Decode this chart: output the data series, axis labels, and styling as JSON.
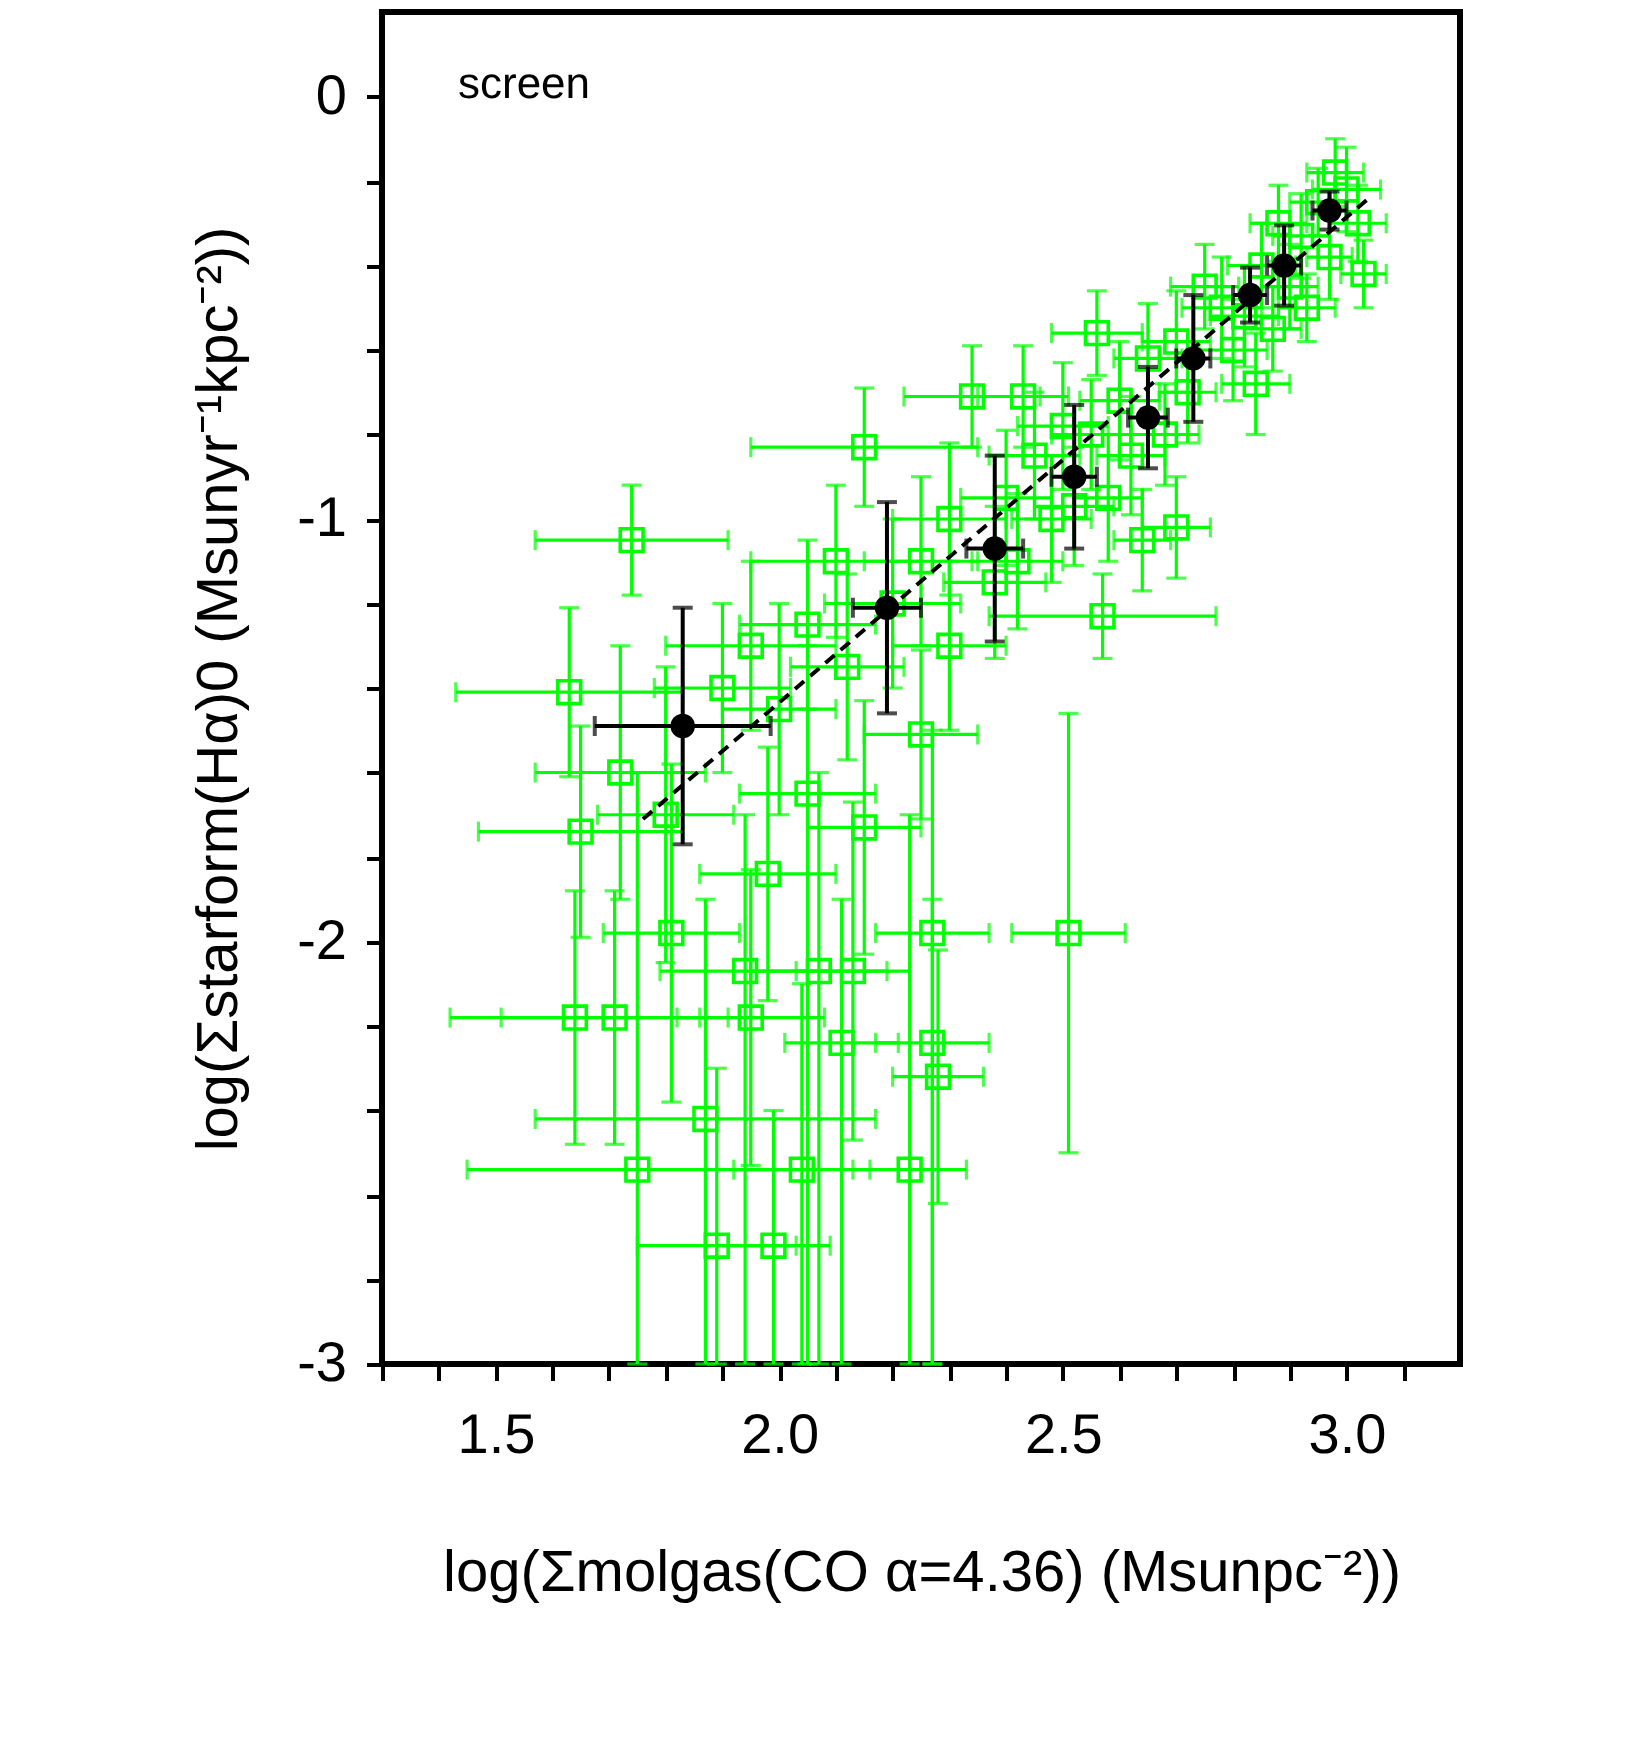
{
  "chart_data": {
    "type": "scatter",
    "xlabel": "log(Σmolgas(CO  α=4.36)  (Msunpc⁻²))",
    "ylabel": "log(Σstarform(Hα)0  (Msunyr⁻¹kpc⁻²))",
    "annotations": [
      "screen"
    ],
    "xlim": [
      1.3,
      3.2
    ],
    "ylim": [
      -3,
      0.2
    ],
    "xticks": [
      {
        "value": 1.3,
        "label": null
      },
      {
        "value": 1.4,
        "label": null
      },
      1.5,
      {
        "value": 1.6,
        "label": null
      },
      {
        "value": 1.7,
        "label": null
      },
      {
        "value": 1.8,
        "label": null
      },
      {
        "value": 1.9,
        "label": null
      },
      {
        "value": 2,
        "label": "2.0"
      },
      {
        "value": 2.1,
        "label": null
      },
      {
        "value": 2.2,
        "label": null
      },
      {
        "value": 2.3,
        "label": null
      },
      {
        "value": 2.4,
        "label": null
      },
      2.5,
      {
        "value": 2.6,
        "label": null
      },
      {
        "value": 2.7,
        "label": null
      },
      {
        "value": 2.8,
        "label": null
      },
      {
        "value": 2.9,
        "label": null
      },
      {
        "value": 3,
        "label": "3.0"
      },
      {
        "value": 3.1,
        "label": null
      }
    ],
    "yticks": [
      0,
      {
        "value": -0.2,
        "label": null
      },
      {
        "value": -0.4,
        "label": null
      },
      {
        "value": -0.6,
        "label": null
      },
      {
        "value": -0.8,
        "label": null
      },
      -1,
      {
        "value": -1.2,
        "label": null
      },
      {
        "value": -1.4,
        "label": null
      },
      {
        "value": -1.6,
        "label": null
      },
      {
        "value": -1.8,
        "label": null
      },
      -2,
      {
        "value": -2.2,
        "label": null
      },
      {
        "value": -2.4,
        "label": null
      },
      {
        "value": -2.6,
        "label": null
      },
      {
        "value": -2.8,
        "label": null
      },
      -3
    ],
    "grid": false,
    "legend": false,
    "series": [
      {
        "type": "scatter",
        "marker": "square",
        "color": "#00ff00",
        "x": [
          2.98,
          3.0,
          2.95,
          3.02,
          2.92,
          2.97,
          2.88,
          2.85,
          2.9,
          3.03,
          2.82,
          2.87,
          2.78,
          2.8,
          2.75,
          2.93,
          2.84,
          2.7,
          2.72,
          2.65,
          2.68,
          2.6,
          2.62,
          2.56,
          2.55,
          2.58,
          2.5,
          2.52,
          2.48,
          2.45,
          2.43,
          2.34,
          2.4,
          2.42,
          2.38,
          2.57,
          2.7,
          2.64,
          2.15,
          2.3,
          2.25,
          2.2,
          2.1,
          2.05,
          2.3,
          2.12,
          1.95,
          1.74,
          1.9,
          2.25,
          2.0,
          1.63,
          1.65,
          1.72,
          1.8,
          1.98,
          2.15,
          2.05,
          1.81,
          1.94,
          2.07,
          2.13,
          2.27,
          1.95,
          2.11,
          2.27,
          2.28,
          1.64,
          1.71,
          2.51,
          1.87,
          1.75,
          2.04,
          2.23,
          1.89,
          1.99
        ],
        "values": [
          -0.18,
          -0.22,
          -0.25,
          -0.3,
          -0.33,
          -0.38,
          -0.3,
          -0.4,
          -0.45,
          -0.42,
          -0.52,
          -0.55,
          -0.5,
          -0.6,
          -0.45,
          -0.5,
          -0.68,
          -0.58,
          -0.7,
          -0.62,
          -0.8,
          -0.72,
          -0.85,
          -0.56,
          -0.8,
          -0.95,
          -0.78,
          -0.97,
          -1.0,
          -0.85,
          -0.71,
          -0.71,
          -0.95,
          -1.1,
          -1.15,
          -1.23,
          -1.02,
          -1.05,
          -0.83,
          -1.0,
          -1.1,
          -1.2,
          -1.1,
          -1.25,
          -1.3,
          -1.35,
          -1.3,
          -1.05,
          -1.4,
          -1.51,
          -1.45,
          -1.41,
          -1.74,
          -1.6,
          -1.7,
          -1.84,
          -1.73,
          -1.65,
          -1.98,
          -2.07,
          -2.07,
          -2.07,
          -1.98,
          -2.18,
          -2.24,
          -2.24,
          -2.32,
          -2.18,
          -2.18,
          -1.98,
          -2.42,
          -2.54,
          -2.54,
          -2.54,
          -2.72,
          -2.72
        ],
        "xerrors": [
          0.05,
          0.06,
          0.05,
          0.05,
          0.05,
          0.04,
          0.05,
          0.06,
          0.05,
          0.04,
          0.06,
          0.05,
          0.07,
          0.06,
          0.06,
          0.05,
          0.06,
          0.06,
          0.05,
          0.06,
          0.06,
          0.07,
          0.06,
          0.08,
          0.07,
          0.06,
          0.08,
          0.07,
          0.07,
          0.08,
          0.08,
          0.12,
          0.08,
          0.08,
          0.09,
          0.2,
          0.06,
          0.05,
          0.2,
          0.1,
          0.1,
          0.12,
          0.15,
          0.12,
          0.1,
          0.1,
          0.15,
          0.17,
          0.12,
          0.1,
          0.1,
          0.2,
          0.18,
          0.15,
          0.12,
          0.12,
          0.1,
          0.12,
          0.12,
          0.15,
          0.12,
          0.1,
          0.1,
          0.13,
          0.1,
          0.1,
          0.08,
          0.22,
          0.2,
          0.1,
          0.3,
          0.3,
          0.12,
          0.1,
          0.14,
          0.1
        ],
        "errors": [
          0.08,
          0.1,
          0.08,
          0.09,
          0.1,
          0.1,
          0.09,
          0.1,
          0.1,
          0.08,
          0.12,
          0.1,
          0.12,
          0.12,
          0.1,
          0.08,
          0.12,
          0.12,
          0.12,
          0.13,
          0.12,
          0.14,
          0.14,
          0.1,
          0.13,
          0.15,
          0.15,
          0.14,
          0.15,
          0.15,
          0.12,
          0.12,
          0.16,
          0.16,
          0.18,
          0.1,
          0.12,
          0.12,
          0.14,
          0.18,
          0.2,
          0.2,
          0.18,
          0.2,
          0.2,
          0.22,
          0.2,
          0.13,
          0.2,
          0.2,
          0.25,
          0.2,
          0.25,
          0.3,
          0.35,
          0.3,
          0.3,
          [
            -3,
            -1.3
          ],
          0.4,
          [
            -3,
            -1.7
          ],
          [
            -3,
            -1.6
          ],
          0.4,
          [
            -3,
            -1.5
          ],
          0.35,
          [
            -3,
            -1.9
          ],
          [
            -3,
            -1.9
          ],
          0.3,
          0.3,
          0.3,
          0.52,
          [
            -3,
            -1.9
          ],
          [
            -3,
            -1.6
          ],
          [
            -3,
            -2.1
          ],
          [
            -3,
            -1.7
          ],
          [
            -3,
            -2.3
          ],
          [
            -3,
            -2.4
          ]
        ]
      },
      {
        "type": "scatter",
        "marker": "circle",
        "color": "#000000",
        "x": [
          1.83,
          2.19,
          2.38,
          2.52,
          2.65,
          2.73,
          2.83,
          2.89,
          2.97
        ],
        "values": [
          -1.49,
          -1.21,
          -1.07,
          -0.9,
          -0.76,
          -0.62,
          -0.47,
          -0.4,
          -0.27
        ],
        "xerrors": [
          0.155,
          0.06,
          0.05,
          0.04,
          0.035,
          0.03,
          0.03,
          0.03,
          0.03
        ],
        "errors": [
          0.28,
          0.25,
          0.22,
          0.17,
          0.12,
          0.15,
          0.065,
          0.095,
          0.045
        ]
      },
      {
        "type": "line",
        "line_style": "dashed",
        "color": "#000000",
        "x": [
          1.76,
          3.04
        ],
        "values": [
          -1.71,
          -0.24
        ]
      }
    ]
  }
}
